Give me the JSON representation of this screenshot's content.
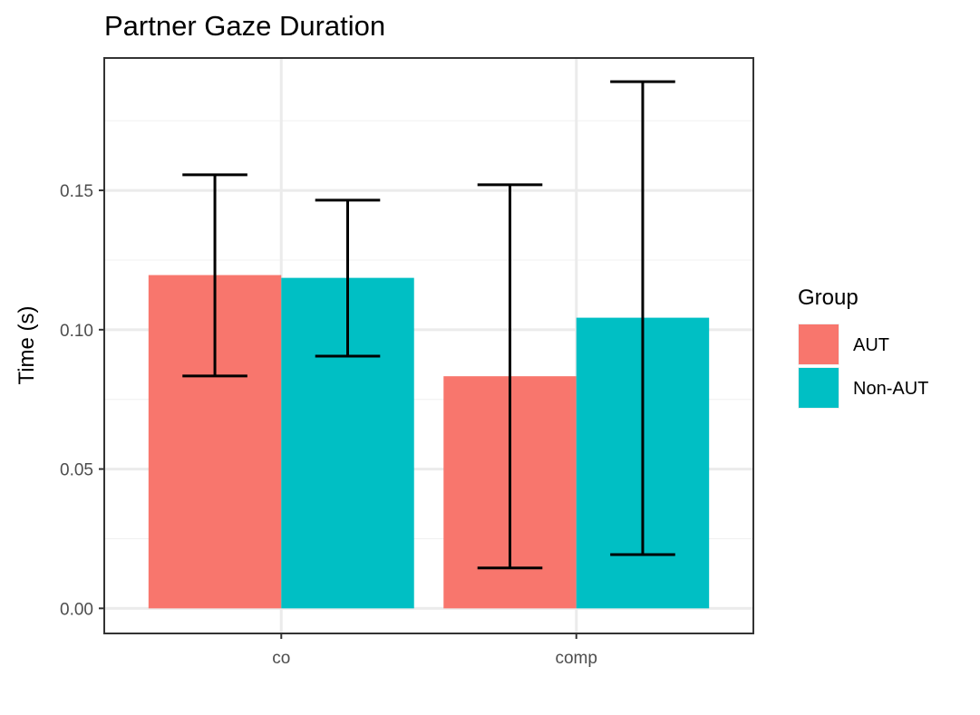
{
  "chart_data": {
    "type": "bar",
    "title": "Partner Gaze Duration",
    "xlabel": "",
    "ylabel": "Time (s)",
    "categories": [
      "co",
      "comp"
    ],
    "ylim": [
      -0.009,
      0.1975
    ],
    "yticks": [
      0.0,
      0.05,
      0.1,
      0.15
    ],
    "ytick_labels": [
      "0.00",
      "0.05",
      "0.10",
      "0.15"
    ],
    "grid": true,
    "legend": {
      "title": "Group",
      "placement": "right"
    },
    "series": [
      {
        "name": "AUT",
        "color": "#F8766D",
        "values": [
          0.1196,
          0.0833
        ],
        "error_low": [
          0.0834,
          0.0145
        ],
        "error_high": [
          0.1556,
          0.152
        ]
      },
      {
        "name": "Non-AUT",
        "color": "#00BFC4",
        "values": [
          0.1186,
          0.1043
        ],
        "error_low": [
          0.0905,
          0.0193
        ],
        "error_high": [
          0.1465,
          0.189
        ]
      }
    ]
  }
}
